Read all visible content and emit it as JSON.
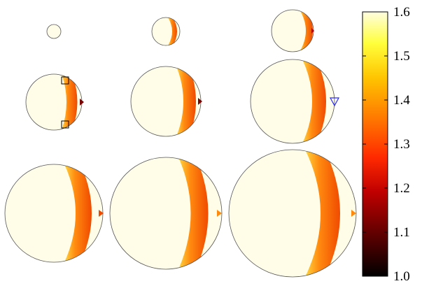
{
  "figure": {
    "panels": [
      {
        "row": 1,
        "col": 1,
        "band": "none"
      },
      {
        "row": 1,
        "col": 2,
        "band": "small"
      },
      {
        "row": 1,
        "col": 3,
        "band": "small"
      },
      {
        "row": 2,
        "col": 1,
        "band": "crescent",
        "markers": [
          "square-marker-top",
          "square-marker-bottom"
        ]
      },
      {
        "row": 2,
        "col": 2,
        "band": "crescent"
      },
      {
        "row": 2,
        "col": 3,
        "band": "crescent",
        "markers": [
          "blue-triangle-marker"
        ]
      },
      {
        "row": 3,
        "col": 1,
        "band": "crescent"
      },
      {
        "row": 3,
        "col": 2,
        "band": "crescent"
      },
      {
        "row": 3,
        "col": 3,
        "band": "crescent"
      }
    ]
  },
  "colorbar": {
    "min": 1.0,
    "max": 1.6,
    "ticks": [
      "1.0",
      "1.1",
      "1.2",
      "1.3",
      "1.4",
      "1.5",
      "1.6"
    ],
    "colormap": [
      "#000000",
      "#5a0000",
      "#c00000",
      "#ff2a00",
      "#ff7a00",
      "#ffc400",
      "#ffff3a",
      "#fffde0"
    ]
  }
}
